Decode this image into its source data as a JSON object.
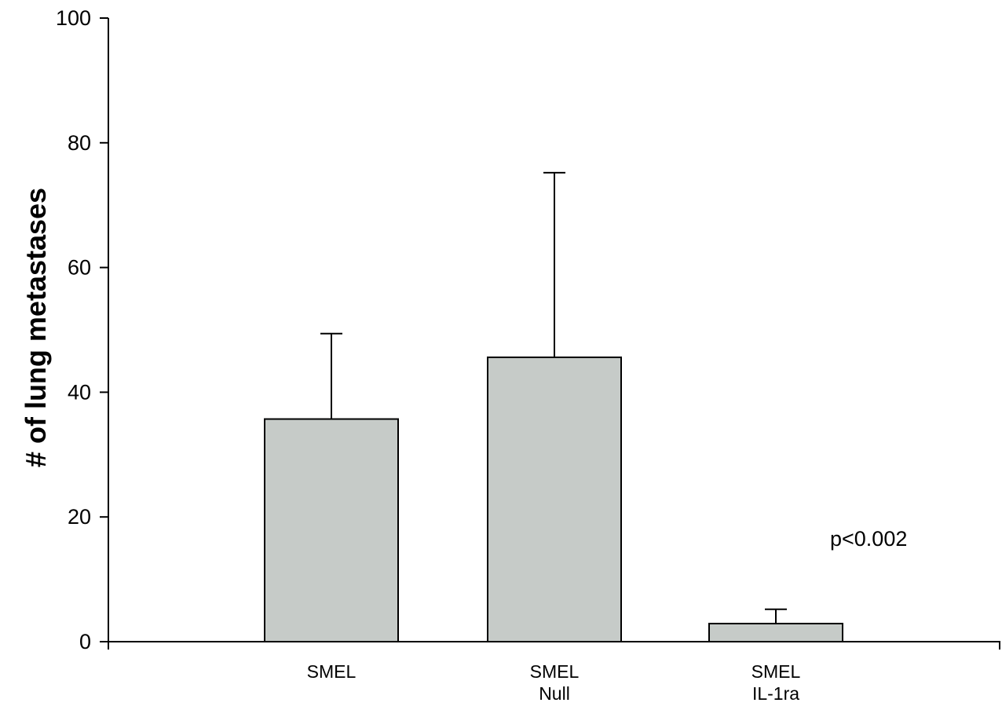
{
  "chart_data": {
    "type": "bar",
    "categories": [
      [
        "SMEL"
      ],
      [
        "SMEL",
        "Null"
      ],
      [
        "SMEL",
        "IL-1ra"
      ]
    ],
    "values": [
      35.7,
      45.6,
      2.9
    ],
    "error_upper": [
      49.4,
      75.2,
      5.2
    ],
    "ylabel": "# of lung metastases",
    "xlabel": "",
    "ylim": [
      0,
      100
    ],
    "yticks": [
      0,
      20,
      40,
      60,
      80,
      100
    ],
    "grid": false,
    "bar_color": "#c6cbc8",
    "annotation": "p<0.002"
  }
}
